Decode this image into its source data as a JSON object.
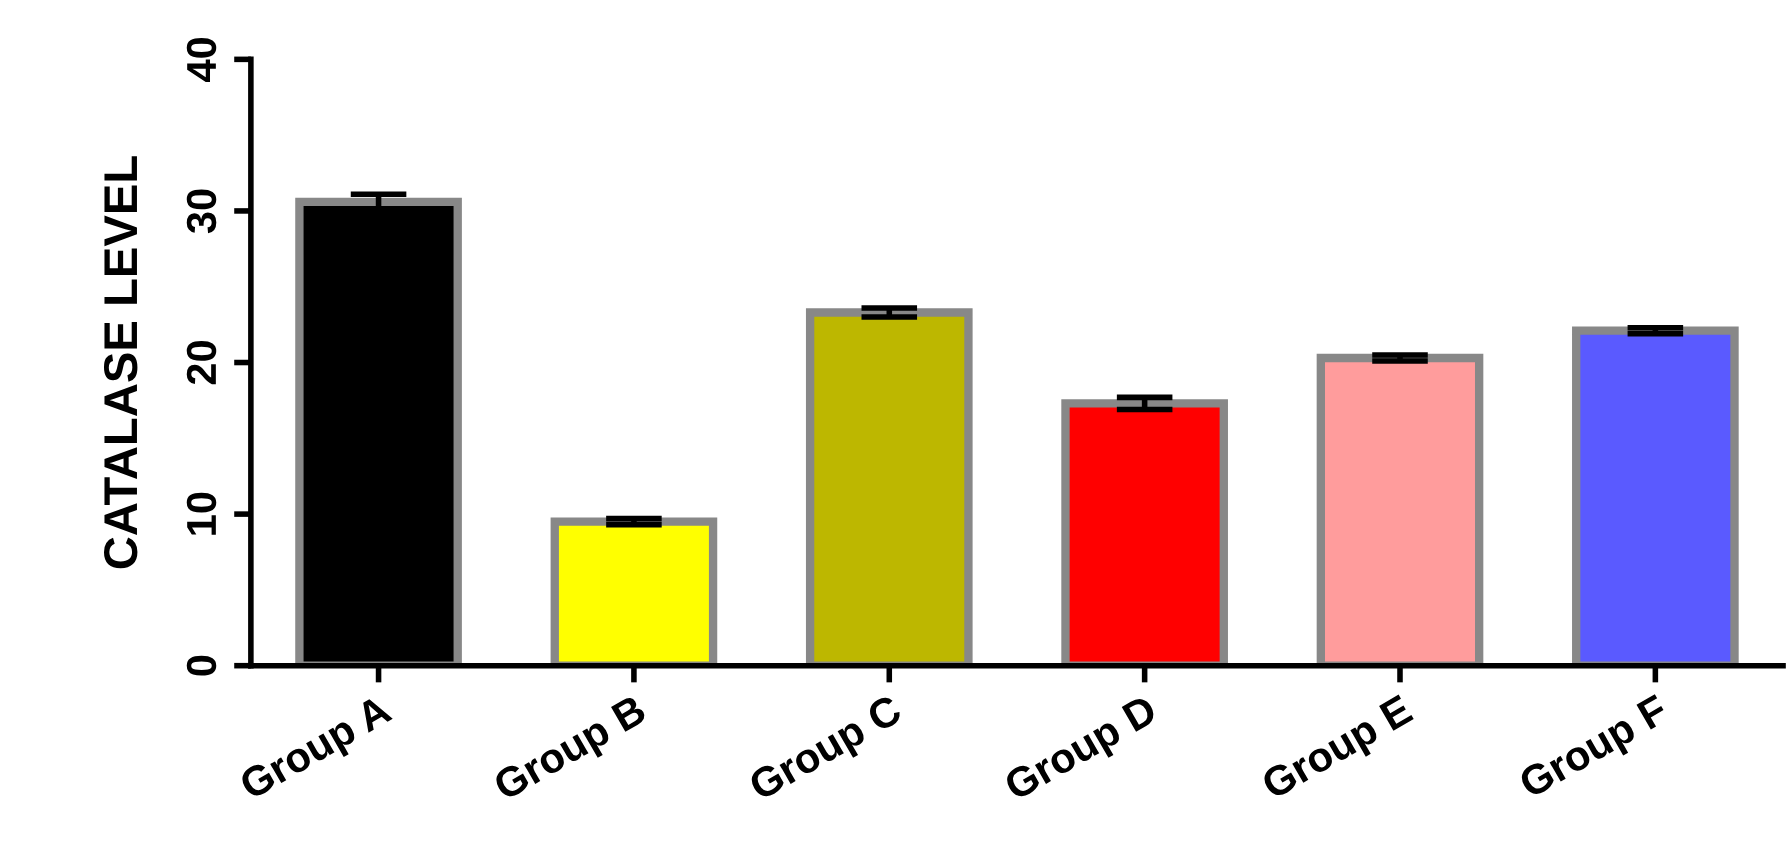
{
  "chart_data": {
    "type": "bar",
    "ylabel": "CATALASE LEVEL",
    "categories": [
      "Group A",
      "Group B",
      "Group C",
      "Group D",
      "Group E",
      "Group F"
    ],
    "values": [
      30.6,
      9.5,
      23.3,
      17.3,
      20.3,
      22.1
    ],
    "errors": [
      0.5,
      0.2,
      0.3,
      0.4,
      0.2,
      0.2
    ],
    "colors": [
      "#000000",
      "#ffff00",
      "#bdb700",
      "#ff0000",
      "#ff9c9c",
      "#5a5aff"
    ],
    "ylim": [
      0,
      40
    ],
    "yticks": [
      0,
      10,
      20,
      30,
      40
    ],
    "grid": false,
    "legend": false
  }
}
